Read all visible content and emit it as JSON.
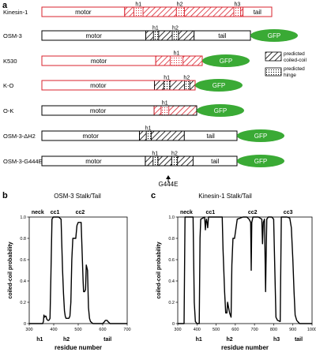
{
  "panel_a": {
    "label": "a",
    "constructs": [
      {
        "name": "Kinesin-1",
        "segments": [
          {
            "type": "motor",
            "color": "#d9232e",
            "from": 0,
            "to": 0.36,
            "label": "motor"
          },
          {
            "type": "hatch",
            "color": "#d9232e",
            "from": 0.36,
            "to": 0.875
          },
          {
            "type": "dots",
            "color": "#d9232e",
            "from": 0.4,
            "to": 0.44
          },
          {
            "type": "dots",
            "color": "#d9232e",
            "from": 0.585,
            "to": 0.62
          },
          {
            "type": "dots",
            "color": "#d9232e",
            "from": 0.835,
            "to": 0.865
          },
          {
            "type": "plain",
            "color": "#d9232e",
            "from": 0.875,
            "to": 1.0,
            "label": "tail"
          }
        ],
        "hinges": [
          {
            "label": "h1",
            "at": 0.42
          },
          {
            "label": "h2",
            "at": 0.6
          },
          {
            "label": "h3",
            "at": 0.85
          }
        ],
        "x0": 53,
        "x1": 344,
        "gfp": false
      },
      {
        "name": "OSM-3",
        "segments": [
          {
            "type": "motor",
            "color": "#000000",
            "from": 0,
            "to": 0.498,
            "label": "motor"
          },
          {
            "type": "hatch",
            "color": "#000000",
            "from": 0.498,
            "to": 0.73
          },
          {
            "type": "dots",
            "color": "#000000",
            "from": 0.535,
            "to": 0.56
          },
          {
            "type": "dots",
            "color": "#000000",
            "from": 0.625,
            "to": 0.655
          },
          {
            "type": "plain",
            "color": "#000000",
            "from": 0.73,
            "to": 1.0,
            "label": "tail"
          }
        ],
        "hinges": [
          {
            "label": "h1",
            "at": 0.545
          },
          {
            "label": "h2",
            "at": 0.64
          }
        ],
        "x0": 53,
        "x1": 317,
        "gfp": true
      },
      {
        "name": "K530",
        "segments": [
          {
            "type": "motor",
            "color": "#d9232e",
            "from": 0,
            "to": 0.71,
            "label": "motor"
          },
          {
            "type": "hatch",
            "color": "#d9232e",
            "from": 0.71,
            "to": 1.0
          },
          {
            "type": "dots",
            "color": "#d9232e",
            "from": 0.8,
            "to": 0.88
          }
        ],
        "hinges": [
          {
            "label": "h1",
            "at": 0.84
          }
        ],
        "x0": 53,
        "x1": 256,
        "gfp": true
      },
      {
        "name": "K-O",
        "segments": [
          {
            "type": "motor",
            "color": "#d9232e",
            "from": 0,
            "to": 0.735,
            "label": "motor"
          },
          {
            "type": "hatch",
            "color": "#000000",
            "from": 0.735,
            "to": 1.0
          },
          {
            "type": "dots",
            "color": "#000000",
            "from": 0.795,
            "to": 0.835
          },
          {
            "type": "dots",
            "color": "#000000",
            "from": 0.93,
            "to": 0.965
          }
        ],
        "hinges": [
          {
            "label": "h1",
            "at": 0.815
          },
          {
            "label": "h2",
            "at": 0.945
          }
        ],
        "x0": 53,
        "x1": 247,
        "gfp": true
      },
      {
        "name": "O-K",
        "segments": [
          {
            "type": "motor",
            "color": "#000000",
            "from": 0,
            "to": 0.725,
            "label": "motor"
          },
          {
            "type": "hatch",
            "color": "#d9232e",
            "from": 0.725,
            "to": 1.0
          },
          {
            "type": "dots",
            "color": "#d9232e",
            "from": 0.77,
            "to": 0.82
          }
        ],
        "hinges": [
          {
            "label": "h1",
            "at": 0.795
          }
        ],
        "x0": 53,
        "x1": 249,
        "gfp": true
      },
      {
        "name": "OSM-3-ΔH2",
        "segments": [
          {
            "type": "motor",
            "color": "#000000",
            "from": 0,
            "to": 0.5,
            "label": "motor"
          },
          {
            "type": "hatch",
            "color": "#000000",
            "from": 0.5,
            "to": 0.73
          },
          {
            "type": "dots",
            "color": "#000000",
            "from": 0.535,
            "to": 0.56
          },
          {
            "type": "plain",
            "color": "#000000",
            "from": 0.73,
            "to": 1.0,
            "label": "tail"
          }
        ],
        "hinges": [
          {
            "label": "h1",
            "at": 0.545
          }
        ],
        "x0": 53,
        "x1": 300,
        "gfp": true
      },
      {
        "name": "OSM-3-G444E",
        "segments": [
          {
            "type": "motor",
            "color": "#000000",
            "from": 0,
            "to": 0.53,
            "label": "motor"
          },
          {
            "type": "hatch",
            "color": "#000000",
            "from": 0.53,
            "to": 0.775
          },
          {
            "type": "dots",
            "color": "#000000",
            "from": 0.57,
            "to": 0.595
          },
          {
            "type": "dots",
            "color": "#000000",
            "from": 0.665,
            "to": 0.695
          },
          {
            "type": "plain",
            "color": "#000000",
            "from": 0.775,
            "to": 1.0,
            "label": "tail"
          }
        ],
        "hinges": [
          {
            "label": "h1",
            "at": 0.58
          },
          {
            "label": "h2",
            "at": 0.68
          }
        ],
        "x0": 53,
        "x1": 300,
        "gfp": true
      }
    ],
    "gfp_label": "GFP",
    "gfp_color": "#3aaa35",
    "legend": [
      {
        "type": "hatch",
        "text": [
          "predicted",
          "coiled-coil"
        ]
      },
      {
        "type": "dots",
        "text": [
          "predicted",
          "hinge"
        ]
      }
    ],
    "mutation_label": "G444E"
  },
  "panel_b": {
    "label": "b",
    "title": "OSM-3 Stalk/Tail",
    "chart_data": {
      "type": "line",
      "title": "OSM-3 Stalk/Tail",
      "xlabel": "residue number",
      "ylabel": "coiled-coil probability",
      "xlim": [
        300,
        700
      ],
      "ylim": [
        0,
        1.0
      ],
      "xticks": [
        300,
        400,
        500,
        600,
        700
      ],
      "yticks": [
        0,
        0.2,
        0.4,
        0.6,
        0.8,
        1.0
      ],
      "ytick_labels": [
        "0",
        "0.2",
        "0.4",
        "0.6",
        "0.8",
        "1.0"
      ],
      "x": [
        300,
        355,
        358,
        360,
        362,
        365,
        368,
        372,
        376,
        380,
        383,
        385,
        388,
        393,
        398,
        420,
        430,
        433,
        436,
        440,
        444,
        447,
        450,
        455,
        462,
        466,
        470,
        474,
        478,
        482,
        486,
        490,
        495,
        500,
        505,
        512,
        515,
        520,
        522,
        526,
        530,
        533,
        538,
        542,
        546,
        550,
        560,
        580,
        600,
        608,
        611,
        618,
        621,
        630,
        700
      ],
      "y": [
        0,
        0,
        0.02,
        0.08,
        0.06,
        0.07,
        0.07,
        0.04,
        0.03,
        0.03,
        0.04,
        0.05,
        0.4,
        0.98,
        1.0,
        1.0,
        0.98,
        0.75,
        0.5,
        0.28,
        0.12,
        0.07,
        0.05,
        0.05,
        0.05,
        0.07,
        0.2,
        0.6,
        0.8,
        0.8,
        0.8,
        0.8,
        0.92,
        0.95,
        0.95,
        0.95,
        0.75,
        0.4,
        0.3,
        0.3,
        0.32,
        0.55,
        0.5,
        0.15,
        0.05,
        0.02,
        0.0,
        0.0,
        0.0,
        0.02,
        0.03,
        0.03,
        0.02,
        0.0,
        0.0
      ],
      "annotations_top": [
        {
          "text": "neck",
          "x": 335
        },
        {
          "text": "cc1",
          "x": 405
        },
        {
          "text": "cc2",
          "x": 508
        }
      ],
      "annotations_bottom": [
        {
          "text": "h1",
          "x": 343
        },
        {
          "text": "h2",
          "x": 452
        },
        {
          "text": "tail",
          "x": 620
        }
      ]
    }
  },
  "panel_c": {
    "label": "c",
    "title": "Kinesin-1 Stalk/Tail",
    "chart_data": {
      "type": "line",
      "title": "Kinesin-1 Stalk/Tail",
      "xlabel": "residue number",
      "ylabel": "coiled-coil probability",
      "xlim": [
        300,
        1000
      ],
      "ylim": [
        0,
        1.0
      ],
      "xticks": [
        300,
        400,
        500,
        600,
        700,
        800,
        900,
        1000
      ],
      "yticks": [
        0,
        0.2,
        0.4,
        0.6,
        0.8,
        1.0
      ],
      "ytick_labels": [
        "0",
        "0.2",
        "0.4",
        "0.6",
        "0.8",
        "1.0"
      ],
      "x": [
        300,
        333,
        338,
        345,
        380,
        386,
        392,
        400,
        412,
        416,
        420,
        440,
        444,
        446,
        450,
        456,
        460,
        520,
        532,
        536,
        544,
        550,
        556,
        560,
        570,
        578,
        582,
        588,
        596,
        610,
        640,
        660,
        672,
        680,
        683,
        686,
        692,
        720,
        738,
        742,
        746,
        752,
        756,
        758,
        760,
        764,
        772,
        790,
        800,
        806,
        812,
        820,
        834,
        840,
        870,
        884,
        892,
        900,
        906,
        912,
        920,
        935,
        1000
      ],
      "y": [
        0,
        0,
        1.0,
        1.0,
        1.0,
        0.2,
        0.02,
        0.0,
        0.0,
        0.8,
        0.98,
        1.0,
        0.88,
        0.95,
        0.98,
        0.9,
        1.0,
        1.0,
        1.0,
        0.7,
        0.3,
        0.1,
        0.1,
        0.2,
        0.1,
        0.06,
        0.55,
        0.8,
        0.8,
        0.98,
        1.0,
        1.0,
        0.98,
        0.95,
        0.5,
        0.95,
        1.0,
        1.0,
        0.98,
        0.75,
        0.95,
        0.98,
        0.55,
        0.3,
        0.55,
        0.98,
        1.0,
        1.0,
        0.98,
        0.5,
        0.06,
        0.03,
        0.02,
        1.0,
        1.0,
        0.99,
        0.9,
        0.6,
        0.3,
        0.08,
        0.03,
        0.0,
        0.0
      ],
      "annotations_top": [
        {
          "text": "neck",
          "x": 345
        },
        {
          "text": "cc1",
          "x": 470
        },
        {
          "text": "cc2",
          "x": 690
        },
        {
          "text": "cc3",
          "x": 875
        }
      ],
      "annotations_bottom": [
        {
          "text": "h1",
          "x": 410
        },
        {
          "text": "h2",
          "x": 570
        },
        {
          "text": "h3",
          "x": 815
        },
        {
          "text": "tail",
          "x": 930
        }
      ]
    }
  }
}
